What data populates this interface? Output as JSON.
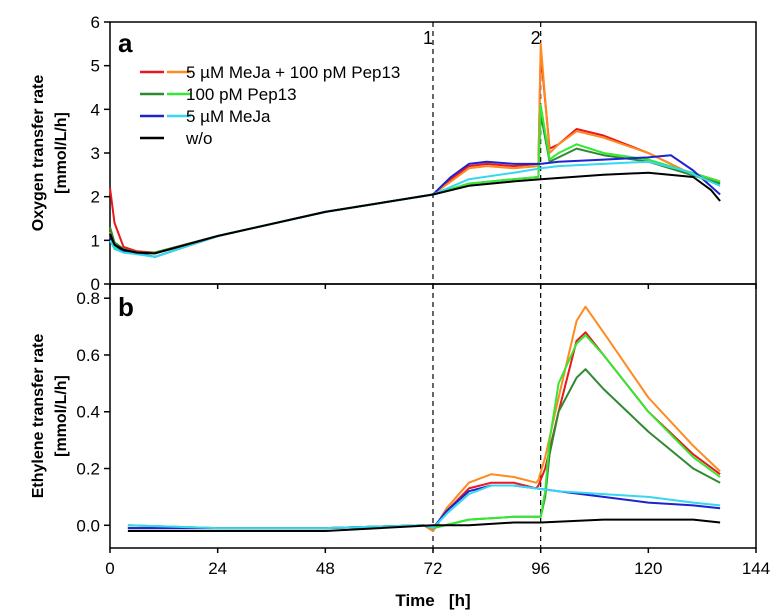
{
  "chart_data": [
    {
      "panel_label": "a",
      "type": "line",
      "ylabel": "Oxygen transfer rate [mmol/L/h]",
      "ylim": [
        0,
        6
      ],
      "yticks": [
        0,
        1,
        2,
        3,
        4,
        5,
        6
      ],
      "xlim": [
        0,
        144
      ],
      "xticks": [
        0,
        24,
        48,
        72,
        96,
        120,
        144
      ],
      "markers": [
        {
          "x": 72,
          "label": "1"
        },
        {
          "x": 96,
          "label": "2"
        }
      ],
      "legend": {
        "placement": "top-left",
        "entries": [
          {
            "label": "5 µM MeJa + 100 pM Pep13",
            "colors": [
              "#e8191c",
              "#ff8a1f"
            ]
          },
          {
            "label": "100 pM Pep13",
            "colors": [
              "#2f8a2f",
              "#34e834"
            ]
          },
          {
            "label": "5 µM MeJa",
            "colors": [
              "#1e22cf",
              "#35d8f0"
            ]
          },
          {
            "label": "w/o",
            "colors": [
              "#000000"
            ]
          }
        ]
      },
      "series": [
        {
          "color": "#e8191c",
          "x": [
            0,
            1,
            3,
            6,
            10,
            24,
            48,
            72,
            76,
            80,
            84,
            90,
            95.5,
            96,
            98,
            100,
            104,
            110,
            120,
            128,
            136
          ],
          "y": [
            2.2,
            1.4,
            0.85,
            0.75,
            0.72,
            1.1,
            1.65,
            2.05,
            2.4,
            2.7,
            2.75,
            2.7,
            2.75,
            5.3,
            3.1,
            3.2,
            3.55,
            3.4,
            3.0,
            2.6,
            2.35
          ]
        },
        {
          "color": "#ff8a1f",
          "x": [
            0,
            1,
            3,
            6,
            10,
            24,
            48,
            72,
            76,
            80,
            84,
            90,
            95.5,
            96,
            98,
            100,
            104,
            110,
            120,
            128,
            136
          ],
          "y": [
            1.2,
            0.95,
            0.8,
            0.72,
            0.7,
            1.1,
            1.65,
            2.05,
            2.35,
            2.65,
            2.7,
            2.65,
            2.7,
            5.5,
            3.0,
            3.2,
            3.5,
            3.35,
            3.0,
            2.6,
            2.3
          ]
        },
        {
          "color": "#2f8a2f",
          "x": [
            0,
            1,
            3,
            6,
            10,
            24,
            48,
            72,
            80,
            90,
            95.5,
            96,
            98,
            100,
            104,
            110,
            120,
            128,
            136
          ],
          "y": [
            1.3,
            0.95,
            0.8,
            0.72,
            0.72,
            1.1,
            1.65,
            2.05,
            2.3,
            2.4,
            2.45,
            3.9,
            2.8,
            2.9,
            3.1,
            2.95,
            2.8,
            2.55,
            2.3
          ]
        },
        {
          "color": "#34e834",
          "x": [
            0,
            1,
            3,
            6,
            10,
            24,
            48,
            72,
            80,
            90,
            95.5,
            96,
            98,
            100,
            104,
            110,
            120,
            128,
            136
          ],
          "y": [
            1.0,
            0.85,
            0.75,
            0.7,
            0.7,
            1.1,
            1.65,
            2.05,
            2.3,
            2.4,
            2.45,
            4.1,
            2.85,
            3.0,
            3.2,
            3.0,
            2.85,
            2.6,
            2.35
          ]
        },
        {
          "color": "#1e22cf",
          "x": [
            0,
            1,
            3,
            6,
            10,
            24,
            48,
            72,
            76,
            80,
            84,
            90,
            96,
            100,
            110,
            120,
            125,
            130,
            136
          ],
          "y": [
            1.1,
            0.9,
            0.75,
            0.7,
            0.62,
            1.1,
            1.65,
            2.05,
            2.45,
            2.75,
            2.8,
            2.75,
            2.75,
            2.8,
            2.85,
            2.9,
            2.95,
            2.6,
            2.05
          ]
        },
        {
          "color": "#35d8f0",
          "x": [
            0,
            1,
            3,
            6,
            10,
            24,
            48,
            72,
            80,
            90,
            96,
            100,
            110,
            120,
            128,
            136
          ],
          "y": [
            1.0,
            0.8,
            0.72,
            0.68,
            0.62,
            1.1,
            1.65,
            2.05,
            2.4,
            2.55,
            2.65,
            2.7,
            2.75,
            2.8,
            2.6,
            2.25
          ]
        },
        {
          "color": "#000000",
          "x": [
            0,
            1,
            3,
            6,
            10,
            24,
            48,
            72,
            80,
            90,
            96,
            110,
            120,
            130,
            134,
            136
          ],
          "y": [
            1.15,
            0.9,
            0.78,
            0.72,
            0.7,
            1.1,
            1.65,
            2.05,
            2.25,
            2.35,
            2.4,
            2.5,
            2.55,
            2.45,
            2.15,
            1.9
          ]
        }
      ]
    },
    {
      "panel_label": "b",
      "type": "line",
      "ylabel": "Ethylene transfer rate [mmol/L/h]",
      "ylim": [
        -0.08,
        0.85
      ],
      "yticks": [
        0.0,
        0.2,
        0.4,
        0.6,
        0.8
      ],
      "xlabel": "Time   [h]",
      "xlim": [
        0,
        144
      ],
      "xticks": [
        0,
        24,
        48,
        72,
        96,
        120,
        144
      ],
      "series": [
        {
          "color": "#e8191c",
          "x": [
            4,
            24,
            48,
            70,
            72,
            75,
            80,
            85,
            90,
            95,
            95.5,
            97,
            100,
            104,
            106,
            110,
            120,
            130,
            136
          ],
          "y": [
            -0.01,
            -0.01,
            -0.01,
            0.0,
            -0.02,
            0.05,
            0.13,
            0.15,
            0.15,
            0.13,
            0.14,
            0.2,
            0.4,
            0.65,
            0.68,
            0.6,
            0.4,
            0.25,
            0.18
          ]
        },
        {
          "color": "#ff8a1f",
          "x": [
            4,
            24,
            48,
            70,
            72,
            75,
            80,
            85,
            90,
            95,
            95.5,
            97,
            100,
            104,
            106,
            110,
            120,
            130,
            136
          ],
          "y": [
            0.0,
            -0.01,
            -0.01,
            0.0,
            -0.02,
            0.06,
            0.15,
            0.18,
            0.17,
            0.15,
            0.16,
            0.24,
            0.45,
            0.72,
            0.77,
            0.68,
            0.45,
            0.28,
            0.19
          ]
        },
        {
          "color": "#2f8a2f",
          "x": [
            4,
            24,
            48,
            70,
            72,
            80,
            90,
            96,
            97,
            98,
            100,
            104,
            106,
            110,
            120,
            130,
            136
          ],
          "y": [
            -0.01,
            -0.01,
            -0.01,
            0.0,
            -0.01,
            0.02,
            0.03,
            0.03,
            0.1,
            0.25,
            0.4,
            0.52,
            0.55,
            0.48,
            0.33,
            0.2,
            0.15
          ]
        },
        {
          "color": "#34e834",
          "x": [
            4,
            24,
            48,
            70,
            72,
            80,
            90,
            96,
            97,
            98,
            100,
            104,
            106,
            110,
            120,
            130,
            136
          ],
          "y": [
            0.0,
            -0.01,
            -0.01,
            0.0,
            -0.01,
            0.02,
            0.03,
            0.03,
            0.12,
            0.3,
            0.5,
            0.64,
            0.67,
            0.6,
            0.4,
            0.24,
            0.17
          ]
        },
        {
          "color": "#1e22cf",
          "x": [
            4,
            24,
            48,
            70,
            72,
            75,
            80,
            85,
            90,
            95,
            100,
            110,
            120,
            130,
            136
          ],
          "y": [
            -0.01,
            -0.01,
            -0.01,
            0.0,
            -0.01,
            0.05,
            0.12,
            0.14,
            0.14,
            0.13,
            0.12,
            0.1,
            0.08,
            0.07,
            0.06
          ]
        },
        {
          "color": "#35d8f0",
          "x": [
            4,
            24,
            48,
            70,
            72,
            75,
            80,
            85,
            90,
            95,
            100,
            110,
            120,
            130,
            136
          ],
          "y": [
            0.0,
            -0.01,
            -0.01,
            0.0,
            -0.01,
            0.04,
            0.11,
            0.14,
            0.14,
            0.13,
            0.12,
            0.11,
            0.1,
            0.08,
            0.07
          ]
        },
        {
          "color": "#000000",
          "x": [
            4,
            24,
            48,
            72,
            80,
            90,
            96,
            110,
            120,
            130,
            136
          ],
          "y": [
            -0.02,
            -0.02,
            -0.02,
            0.0,
            0.0,
            0.01,
            0.01,
            0.02,
            0.02,
            0.02,
            0.01
          ]
        }
      ]
    }
  ]
}
